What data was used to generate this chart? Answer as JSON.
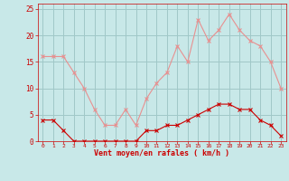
{
  "hours": [
    0,
    1,
    2,
    3,
    4,
    5,
    6,
    7,
    8,
    9,
    10,
    11,
    12,
    13,
    14,
    15,
    16,
    17,
    18,
    19,
    20,
    21,
    22,
    23
  ],
  "wind_avg": [
    4,
    4,
    2,
    0,
    0,
    0,
    0,
    0,
    0,
    0,
    2,
    2,
    3,
    3,
    4,
    5,
    6,
    7,
    7,
    6,
    6,
    4,
    3,
    1
  ],
  "wind_gust": [
    16,
    16,
    16,
    13,
    10,
    6,
    3,
    3,
    6,
    3,
    8,
    11,
    13,
    18,
    15,
    23,
    19,
    21,
    24,
    21,
    19,
    18,
    15,
    10
  ],
  "bg_color": "#c8e8e8",
  "avg_color": "#cc0000",
  "gust_color": "#e89090",
  "grid_color": "#a0c8c8",
  "xlabel": "Vent moyen/en rafales ( km/h )",
  "xlabel_color": "#cc0000",
  "tick_color": "#cc0000",
  "ylim": [
    0,
    26
  ],
  "yticks": [
    0,
    5,
    10,
    15,
    20,
    25
  ],
  "spine_color": "#cc0000"
}
